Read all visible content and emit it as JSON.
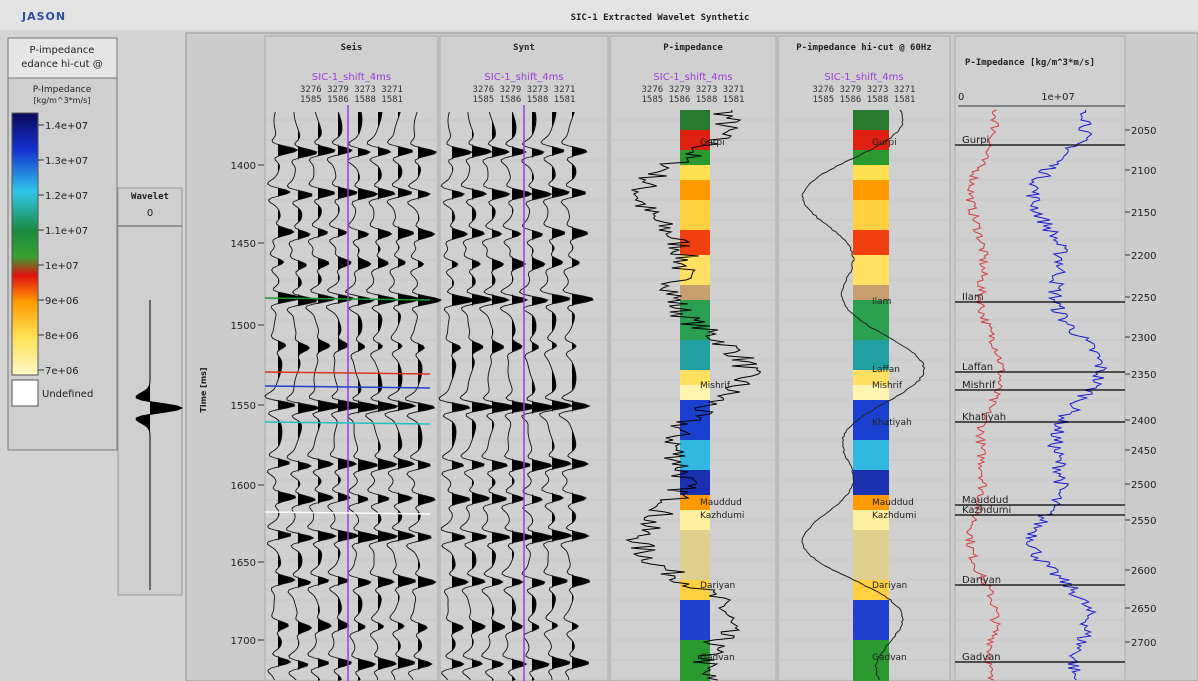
{
  "header": {
    "logo": "JASON",
    "title": "SIC-1 Extracted Wavelet Synthetic"
  },
  "legend": {
    "title_lines": [
      "P-impedance",
      "edance hi-cut @"
    ],
    "scale_title": [
      "P-Impedance",
      "[kg/m^3*m/s]"
    ],
    "colorbar_labels": [
      "1.4e+07",
      "1.3e+07",
      "1.2e+07",
      "1.1e+07",
      "1e+07",
      "9e+06",
      "8e+06",
      "7e+06"
    ],
    "undefined": "Undefined"
  },
  "wavelet": {
    "title": "Wavelet",
    "tick": "0"
  },
  "time_axis": {
    "label": "Time [ms]",
    "ticks": [
      1400,
      1450,
      1500,
      1550,
      1600,
      1650,
      1700
    ]
  },
  "panels": [
    {
      "title": "Seis",
      "well": "SIC-1_shift_4ms",
      "trace_ids": "3276  3279  3273  3271",
      "trace_nums": "1585  1586  1588  1581"
    },
    {
      "title": "Synt",
      "well": "SIC-1_shift_4ms",
      "trace_ids": "3276  3279  3273  3271",
      "trace_nums": "1585  1586  1588  1581"
    },
    {
      "title": "P-impedance",
      "well": "SIC-1_shift_4ms",
      "trace_ids": "3276  3279  3273  3271",
      "trace_nums": "1585  1586  1588  1581"
    },
    {
      "title": "P-impedance hi-cut @ 60Hz",
      "well": "SIC-1_shift_4ms",
      "trace_ids": "3276  3279  3273  3271",
      "trace_nums": "1585  1586  1588  1581"
    }
  ],
  "impedance_tops": [
    "Gurpi",
    "Mishrif",
    "Mauddud",
    "Kazhdumi",
    "Dariyan",
    "Gadvan"
  ],
  "hicut_tops": [
    "Gurpi",
    "Ilam",
    "Laffan",
    "Mishrif",
    "Khatiyah",
    "Mauddud",
    "Kazhdumi",
    "Dariyan",
    "Gadvan"
  ],
  "log_panel": {
    "title": "P-Impedance [kg/m^3*m/s]",
    "scale": [
      "0",
      "1e+07"
    ],
    "depth_ticks": [
      2050,
      2100,
      2150,
      2200,
      2250,
      2300,
      2350,
      2400,
      2450,
      2500,
      2550,
      2600,
      2650,
      2700
    ],
    "tops": [
      "Gurpi",
      "Ilam",
      "Laffan",
      "Mishrif",
      "Khatiyah",
      "Mauddud",
      "Kazhdumi",
      "Dariyan",
      "Gadvan"
    ]
  }
}
